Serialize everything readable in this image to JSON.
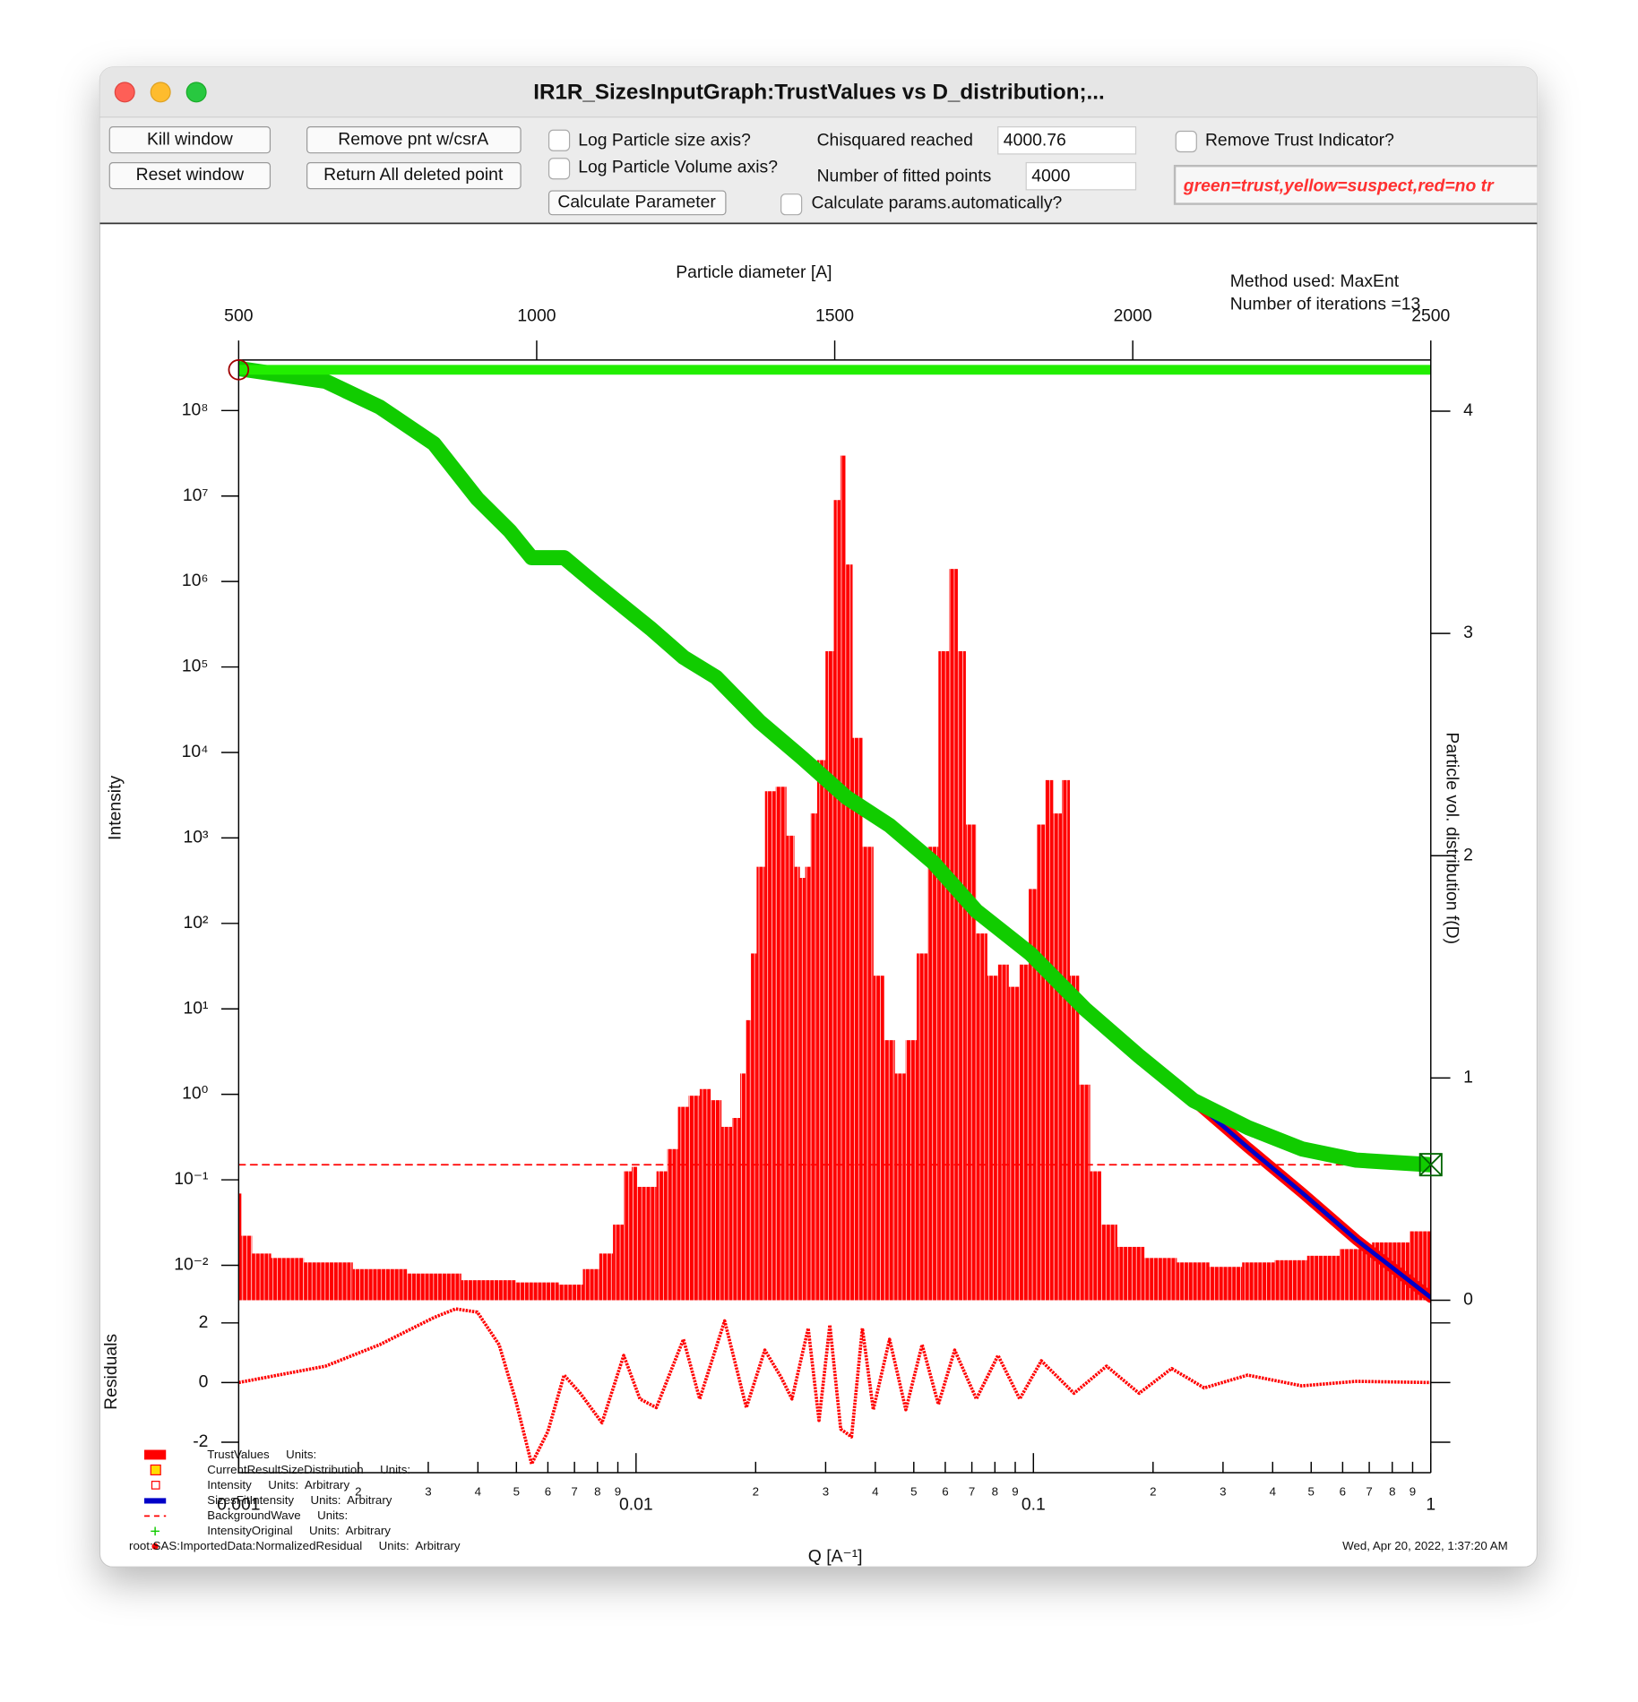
{
  "window": {
    "title": "IR1R_SizesInputGraph:TrustValues vs D_distribution;...",
    "buttons": [
      "Kill window",
      "Reset window",
      "Remove pnt w/csrA",
      "Return All deleted point",
      "Calculate Parameter"
    ],
    "checkboxes": [
      "Log Particle size axis?",
      "Log Particle Volume axis?",
      "Calculate params.automatically?",
      "Remove Trust Indicator?"
    ],
    "fields": [
      {
        "label": "Chisquared reached",
        "value": "4000.76"
      },
      {
        "label": "Number of fitted points",
        "value": "4000"
      }
    ],
    "trust_legend": "green=trust,yellow=suspect,red=no tr"
  },
  "chart_data": [
    {
      "type": "line",
      "top_x_label": "Particle diameter [A]",
      "x_label": "Q [A⁻¹]",
      "y_label": "Intensity",
      "y2_label": "Particle vol. distribution f(D)",
      "annotations": [
        "Method used: MaxEnt",
        "Number of iterations =13"
      ],
      "timestamp": "Wed, Apr 20, 2022, 1:37:20 AM",
      "log_x": true,
      "log_y": true,
      "xlim": [
        0.001,
        1
      ],
      "xticks": [
        0.001,
        {
          "value": 0.002,
          "label": "2"
        },
        {
          "value": 0.003,
          "label": "3"
        },
        {
          "value": 0.004,
          "label": "4"
        },
        {
          "value": 0.005,
          "label": "5"
        },
        {
          "value": 0.006,
          "label": "6"
        },
        {
          "value": 0.007,
          "label": "7"
        },
        {
          "value": 0.008,
          "label": "8"
        },
        {
          "value": 0.009,
          "label": "9"
        },
        0.01,
        {
          "value": 0.02,
          "label": "2"
        },
        {
          "value": 0.03,
          "label": "3"
        },
        {
          "value": 0.04,
          "label": "4"
        },
        {
          "value": 0.05,
          "label": "5"
        },
        {
          "value": 0.06,
          "label": "6"
        },
        {
          "value": 0.07,
          "label": "7"
        },
        {
          "value": 0.08,
          "label": "8"
        },
        {
          "value": 0.09,
          "label": "9"
        },
        0.1,
        {
          "value": 0.2,
          "label": "2"
        },
        {
          "value": 0.3,
          "label": "3"
        },
        {
          "value": 0.4,
          "label": "4"
        },
        {
          "value": 0.5,
          "label": "5"
        },
        {
          "value": 0.6,
          "label": "6"
        },
        {
          "value": 0.7,
          "label": "7"
        },
        {
          "value": 0.8,
          "label": "8"
        },
        {
          "value": 0.9,
          "label": "9"
        },
        1
      ],
      "top_xlim": [
        500,
        2500
      ],
      "top_xticks": [
        500,
        1000,
        1500,
        2000,
        2500
      ],
      "ylim": [
        0.0039,
        390000000
      ],
      "yticks": [
        {
          "value": 0.01,
          "label": "10⁻²"
        },
        {
          "value": 0.1,
          "label": "10⁻¹"
        },
        {
          "value": 1,
          "label": "10⁰"
        },
        {
          "value": 10,
          "label": "10¹"
        },
        {
          "value": 100,
          "label": "10²"
        },
        {
          "value": 1000,
          "label": "10³"
        },
        {
          "value": 10000,
          "label": "10⁴"
        },
        {
          "value": 100000,
          "label": "10⁵"
        },
        {
          "value": 1000000,
          "label": "10⁶"
        },
        {
          "value": 10000000,
          "label": "10⁷"
        },
        {
          "value": 100000000,
          "label": "10⁸"
        }
      ],
      "y2lim": [
        0,
        4.23
      ],
      "y2ticks": [
        0,
        1,
        2,
        3,
        4
      ],
      "legend": [
        "TrustValues     Units:",
        "CurrentResultSizeDistribution     Units:",
        "Intensity     Units:  Arbitrary",
        "SizesFitIntensity     Units:  Arbitrary",
        "BackgroundWave     Units:",
        "IntensityOriginal     Units:  Arbitrary",
        "root:SAS:ImportedData:NormalizedResidual     Units:  Arbitrary"
      ],
      "series": [
        {
          "type": "bar",
          "axis": "y2",
          "x_axis": "top",
          "color": "#ff0000",
          "x": [
            500,
            509,
            536,
            573,
            646,
            737,
            828,
            919,
            1010,
            1064,
            1091,
            1119,
            1137,
            1155,
            1164,
            1173,
            1192,
            1210,
            1228,
            1246,
            1264,
            1283,
            1301,
            1319,
            1337,
            1346,
            1355,
            1364,
            1374,
            1392,
            1410,
            1428,
            1437,
            1446,
            1455,
            1464,
            1477,
            1492,
            1505,
            1514,
            1523,
            1537,
            1556,
            1574,
            1592,
            1610,
            1628,
            1647,
            1665,
            1683,
            1701,
            1712,
            1728,
            1747,
            1765,
            1783,
            1801,
            1819,
            1832,
            1847,
            1859,
            1874,
            1888,
            1901,
            1919,
            1938,
            1956,
            1992,
            2047,
            2101,
            2156,
            2211,
            2265,
            2320,
            2374,
            2429,
            2500
          ],
          "values": [
            0.48,
            0.29,
            0.21,
            0.19,
            0.17,
            0.14,
            0.12,
            0.09,
            0.08,
            0.07,
            0.14,
            0.21,
            0.34,
            0.58,
            0.6,
            0.51,
            0.51,
            0.58,
            0.68,
            0.87,
            0.92,
            0.95,
            0.9,
            0.78,
            0.82,
            1.02,
            1.26,
            1.56,
            1.95,
            2.29,
            2.31,
            2.09,
            1.95,
            1.9,
            1.95,
            2.19,
            2.43,
            2.92,
            3.6,
            3.8,
            3.31,
            2.53,
            2.04,
            1.46,
            1.17,
            1.02,
            1.17,
            1.56,
            2.04,
            2.92,
            3.29,
            2.92,
            2.14,
            1.65,
            1.46,
            1.51,
            1.41,
            1.51,
            1.85,
            2.14,
            2.34,
            2.19,
            2.34,
            1.46,
            0.97,
            0.58,
            0.34,
            0.24,
            0.19,
            0.17,
            0.15,
            0.17,
            0.18,
            0.2,
            0.23,
            0.26,
            0.31
          ]
        },
        {
          "type": "line",
          "dashed": true,
          "color": "#ff0000",
          "x": [
            0.001,
            1
          ],
          "values": [
            0.15,
            0.15
          ]
        },
        {
          "type": "line",
          "color": "#0000c8",
          "edge_color": "#ff0000",
          "x": [
            0.1347,
            0.1845,
            0.2526,
            0.3459,
            0.4736,
            0.6485,
            1.0
          ],
          "values": [
            10,
            2.8,
            0.85,
            0.24,
            0.071,
            0.02,
            0.0042
          ]
        },
        {
          "type": "line",
          "marker": "+",
          "color": "#11cc00",
          "x": [
            0.001,
            0.001654,
            0.002264,
            0.0031,
            0.003987,
            0.004814,
            0.00546,
            0.006592,
            0.007961,
            0.0109,
            0.01316,
            0.01589,
            0.02044,
            0.02628,
            0.03379,
            0.04345,
            0.05587,
            0.07184,
            0.09837,
            0.1347,
            0.1845,
            0.2526,
            0.3459,
            0.4736,
            0.6485,
            1.0
          ],
          "values": [
            310000000,
            220000000,
            110000000,
            41000000,
            9300000,
            3900000,
            1900000,
            1900000,
            910000,
            280000,
            130000,
            76000,
            23000,
            8500,
            3000,
            1400,
            520,
            140,
            44,
            10,
            2.8,
            0.85,
            0.41,
            0.23,
            0.17,
            0.15
          ]
        }
      ]
    },
    {
      "type": "line",
      "y_label": "Residuals",
      "color": "#ff0000",
      "ylim": [
        -3.02,
        2.76
      ],
      "yticks": [
        -2,
        0,
        2
      ],
      "x": [
        0.001,
        0.001654,
        0.002264,
        0.0031,
        0.003516,
        0.003987,
        0.004522,
        0.004969,
        0.00546,
        0.006,
        0.00659,
        0.00724,
        0.00821,
        0.00931,
        0.01023,
        0.01125,
        0.01316,
        0.01446,
        0.01671,
        0.01895,
        0.02109,
        0.02317,
        0.02468,
        0.02712,
        0.02887,
        0.03074,
        0.03274,
        0.03486,
        0.03712,
        0.03954,
        0.04345,
        0.04775,
        0.05247,
        0.05766,
        0.06337,
        0.07184,
        0.08147,
        0.09238,
        0.1047,
        0.1265,
        0.1528,
        0.1845,
        0.2228,
        0.269,
        0.3459,
        0.4736,
        0.6485,
        1.0
      ],
      "values": [
        0,
        0.55,
        1.27,
        2.18,
        2.47,
        2.36,
        1.27,
        -0.55,
        -2.73,
        -1.64,
        0.25,
        -0.36,
        -1.35,
        0.91,
        -0.55,
        -0.84,
        1.45,
        -0.55,
        2.07,
        -0.84,
        1.09,
        0.18,
        -0.55,
        1.82,
        -1.27,
        1.93,
        -1.56,
        -1.82,
        1.82,
        -0.91,
        1.45,
        -0.91,
        1.27,
        -0.73,
        1.09,
        -0.55,
        0.91,
        -0.55,
        0.73,
        -0.36,
        0.55,
        -0.36,
        0.47,
        -0.18,
        0.25,
        -0.11,
        0.04,
        0
      ]
    }
  ]
}
